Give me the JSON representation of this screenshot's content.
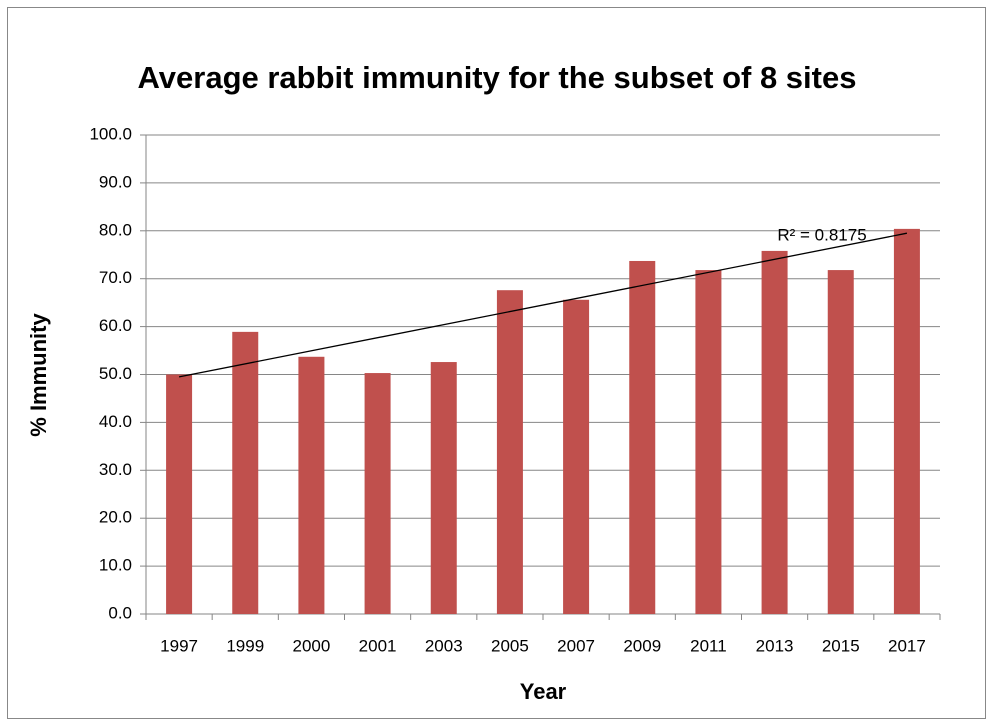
{
  "chart_data": {
    "type": "bar",
    "title": "Average rabbit immunity for the subset of 8 sites",
    "x_label": "Year",
    "y_label": "% Immunity",
    "categories": [
      "1997",
      "1999",
      "2000",
      "2001",
      "2003",
      "2005",
      "2007",
      "2009",
      "2011",
      "2013",
      "2015",
      "2017"
    ],
    "values": [
      50.0,
      58.9,
      53.7,
      50.3,
      52.6,
      67.6,
      65.6,
      73.7,
      71.8,
      75.8,
      71.8,
      80.4
    ],
    "color": "#c0504d",
    "ylim": [
      0,
      100
    ],
    "yticks": [
      {
        "value": 0,
        "label": "0.0"
      },
      {
        "value": 10,
        "label": "10.0"
      },
      {
        "value": 20,
        "label": "20.0"
      },
      {
        "value": 30,
        "label": "30.0"
      },
      {
        "value": 40,
        "label": "40.0"
      },
      {
        "value": 50,
        "label": "50.0"
      },
      {
        "value": 60,
        "label": "60.0"
      },
      {
        "value": 70,
        "label": "70.0"
      },
      {
        "value": 80,
        "label": "80.0"
      },
      {
        "value": 90,
        "label": "90.0"
      },
      {
        "value": 100,
        "label": "100.0"
      }
    ],
    "grid": true,
    "trendline": {
      "start": 49.5,
      "end": 79.5,
      "label": "R² = 0.8175"
    }
  }
}
